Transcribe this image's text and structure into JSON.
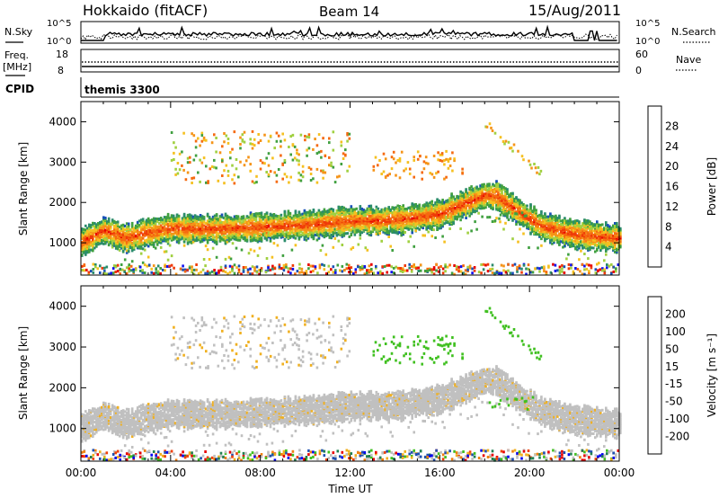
{
  "header": {
    "title": "Hokkaido (fitACF)",
    "beam": "Beam 14",
    "date": "15/Aug/2011"
  },
  "status_panels": {
    "nsky_label": "N.Sky",
    "nsky_ticks": [
      "10^5",
      "10^0"
    ],
    "nsearch_label": "N.Search",
    "nsearch_ticks": [
      "10^5",
      "10^0"
    ],
    "freq_label": [
      "Freq.",
      "[MHz]"
    ],
    "freq_ticks": [
      "18",
      "8"
    ],
    "nave_label": "Nave",
    "nave_ticks": [
      "60",
      "0"
    ],
    "cpid_label": "CPID",
    "cpid_value": "themis 3300"
  },
  "colors": {
    "power_scale": [
      "#1010f0",
      "#1850b8",
      "#2b8c6c",
      "#40a040",
      "#a0d040",
      "#f5c020",
      "#f59418",
      "#f56a10",
      "#ef3a08",
      "#e80000"
    ],
    "velocity_scale": [
      "#0000f0",
      "#2050b0",
      "#208050",
      "#40c020",
      "#c0c0c0",
      "#c0c0c0",
      "#f0b020",
      "#f08010",
      "#f04008",
      "#e80000"
    ],
    "ground_scatter": "#c0c0c0"
  },
  "chart_data": [
    {
      "type": "heatmap",
      "name": "power",
      "xlabel": "Time UT",
      "ylabel": "Slant Range [km]",
      "x_ticks": [
        "00:00",
        "04:00",
        "08:00",
        "12:00",
        "16:00",
        "20:00",
        "00:00"
      ],
      "y_ticks": [
        1000,
        2000,
        3000,
        4000
      ],
      "xlim_hours": [
        0,
        24
      ],
      "ylim": [
        200,
        4500
      ],
      "colorbar_label": "Power [dB]",
      "colorbar_ticks": [
        28,
        24,
        20,
        16,
        12,
        8,
        4
      ],
      "colorbar_range": [
        0,
        30
      ],
      "features": {
        "main_band_km": [
          [
            0,
            1050
          ],
          [
            1,
            1350
          ],
          [
            2,
            1150
          ],
          [
            3,
            1300
          ],
          [
            4,
            1400
          ],
          [
            6,
            1380
          ],
          [
            8,
            1430
          ],
          [
            10,
            1480
          ],
          [
            12,
            1580
          ],
          [
            14,
            1600
          ],
          [
            16,
            1750
          ],
          [
            18,
            2220
          ],
          [
            18.5,
            2200
          ],
          [
            19.5,
            1800
          ],
          [
            20.5,
            1450
          ],
          [
            22,
            1250
          ],
          [
            24,
            1150
          ]
        ]
      }
    },
    {
      "type": "heatmap",
      "name": "velocity",
      "xlabel": "Time UT",
      "ylabel": "Slant Range [km]",
      "x_ticks": [
        "00:00",
        "04:00",
        "08:00",
        "12:00",
        "16:00",
        "20:00",
        "00:00"
      ],
      "y_ticks": [
        1000,
        2000,
        3000,
        4000
      ],
      "xlim_hours": [
        0,
        24
      ],
      "ylim": [
        200,
        4500
      ],
      "colorbar_label": "Velocity [m s⁻¹]",
      "colorbar_ticks": [
        200,
        100,
        50,
        15,
        -15,
        -50,
        -100,
        -200
      ]
    }
  ]
}
